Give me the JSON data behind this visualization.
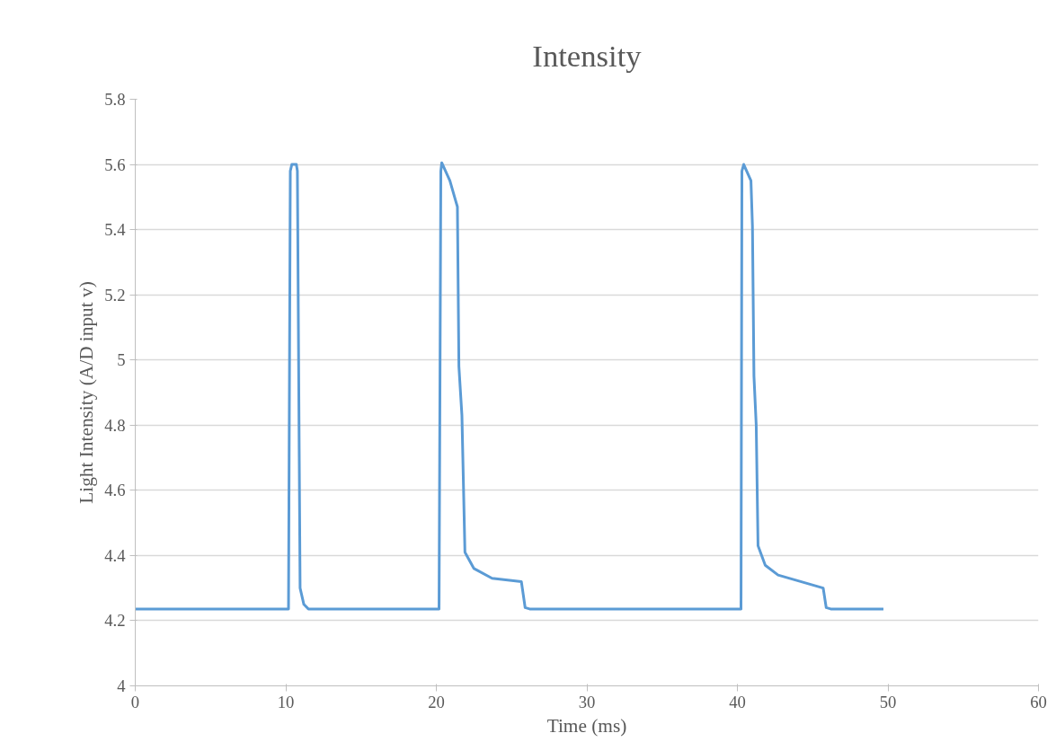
{
  "chart_data": {
    "type": "line",
    "title": "Intensity",
    "xlabel": "Time (ms)",
    "ylabel": "Light Intensity (A/D input v)",
    "x": [
      0,
      5,
      10.18,
      10.3,
      10.4,
      10.7,
      10.77,
      10.95,
      11.2,
      11.5,
      15,
      20.18,
      20.3,
      20.36,
      20.9,
      21.4,
      21.5,
      21.7,
      21.9,
      22.5,
      23.7,
      25.65,
      25.9,
      26.2,
      30,
      35,
      40.24,
      40.3,
      40.42,
      40.9,
      41.0,
      41.1,
      41.25,
      41.37,
      41.85,
      42.7,
      45.7,
      45.9,
      46.2,
      49.7
    ],
    "series": [
      {
        "color": "#5b9bd5",
        "values": [
          4.236,
          4.236,
          4.236,
          5.58,
          5.6,
          5.6,
          5.58,
          4.3,
          4.25,
          4.236,
          4.236,
          4.236,
          5.58,
          5.605,
          5.55,
          5.47,
          4.98,
          4.83,
          4.41,
          4.36,
          4.33,
          4.32,
          4.24,
          4.236,
          4.236,
          4.236,
          4.236,
          5.58,
          5.6,
          5.55,
          5.41,
          4.95,
          4.8,
          4.43,
          4.37,
          4.34,
          4.3,
          4.24,
          4.236,
          4.236
        ]
      }
    ],
    "xlim": [
      0,
      60
    ],
    "ylim": [
      4,
      5.8
    ],
    "xticks": [
      0,
      10,
      20,
      30,
      40,
      50,
      60
    ],
    "yticks": [
      4,
      4.2,
      4.4,
      4.6,
      4.8,
      5,
      5.2,
      5.4,
      5.6,
      5.8
    ],
    "grid": "y",
    "marker": "none",
    "line_style": "solid"
  }
}
